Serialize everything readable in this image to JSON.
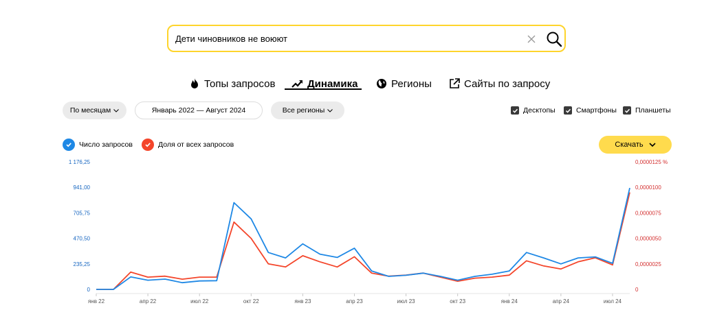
{
  "search": {
    "query": "Дети чиновников не воюют",
    "placeholder": ""
  },
  "tabs": [
    {
      "label": "Топы запросов",
      "icon": "flame-icon"
    },
    {
      "label": "Динамика",
      "icon": "trend-icon",
      "active": true
    },
    {
      "label": "Регионы",
      "icon": "globe-icon"
    },
    {
      "label": "Сайты по запросу",
      "icon": "external-link-icon"
    }
  ],
  "filters": {
    "period": "По месяцам",
    "range": "Январь 2022 — Август 2024",
    "regions": "Все регионы"
  },
  "devices": [
    {
      "label": "Десктопы",
      "checked": true
    },
    {
      "label": "Смартфоны",
      "checked": true
    },
    {
      "label": "Планшеты",
      "checked": true
    }
  ],
  "legend": [
    {
      "label": "Число запросов",
      "color": "#1e88e5"
    },
    {
      "label": "Доля от всех запросов",
      "color": "#f4452a"
    }
  ],
  "download_label": "Скачать",
  "chart_data": {
    "type": "line",
    "x": [
      "янв 22",
      "фев 22",
      "мар 22",
      "апр 22",
      "май 22",
      "июн 22",
      "июл 22",
      "авг 22",
      "сен 22",
      "окт 22",
      "ноя 22",
      "дек 22",
      "янв 23",
      "фев 23",
      "мар 23",
      "апр 23",
      "май 23",
      "июн 23",
      "июл 23",
      "авг 23",
      "сен 23",
      "окт 23",
      "ноя 23",
      "дек 23",
      "янв 24",
      "фев 24",
      "мар 24",
      "апр 24",
      "май 24",
      "июн 24",
      "июл 24",
      "авг 24"
    ],
    "x_tick_labels": [
      "янв 22",
      "апр 22",
      "июл 22",
      "окт 22",
      "янв 23",
      "апр 23",
      "июл 23",
      "окт 23",
      "янв 24",
      "апр 24",
      "июл 24"
    ],
    "series": [
      {
        "name": "Число запросов",
        "axis": "left",
        "color": "#1e88e5",
        "values": [
          0,
          0,
          115,
          85,
          95,
          62,
          78,
          80,
          800,
          650,
          340,
          290,
          420,
          325,
          295,
          380,
          170,
          120,
          130,
          150,
          120,
          85,
          120,
          140,
          170,
          340,
          290,
          235,
          290,
          300,
          240,
          935
        ]
      },
      {
        "name": "Доля от всех запросов",
        "axis": "right",
        "color": "#f4452a",
        "values": [
          0,
          0,
          1.7e-06,
          1.2e-06,
          1.3e-06,
          1e-06,
          1.2e-06,
          1.2e-06,
          6.6e-06,
          5e-06,
          2.5e-06,
          2.2e-06,
          3.3e-06,
          2.7e-06,
          2.2e-06,
          3.2e-06,
          1.6e-06,
          1.3e-06,
          1.4e-06,
          1.6e-06,
          1.2e-06,
          8e-07,
          1.1e-06,
          1.2e-06,
          1.4e-06,
          2.8e-06,
          2.3e-06,
          2e-06,
          2.7e-06,
          3.1e-06,
          2.4e-06,
          9.5e-06
        ]
      }
    ],
    "y_left": {
      "ticks": [
        "0",
        "235,25",
        "470,50",
        "705,75",
        "941,00",
        "1 176,25"
      ],
      "ylim": [
        0,
        1176.25
      ],
      "color": "#1565c0"
    },
    "y_right": {
      "ticks": [
        "0",
        "0,0000025",
        "0,0000050",
        "0,0000075",
        "0,0000100",
        "0,0000125 %"
      ],
      "ylim": [
        0,
        1.25e-05
      ],
      "color": "#d32f2f"
    },
    "grid": false
  }
}
